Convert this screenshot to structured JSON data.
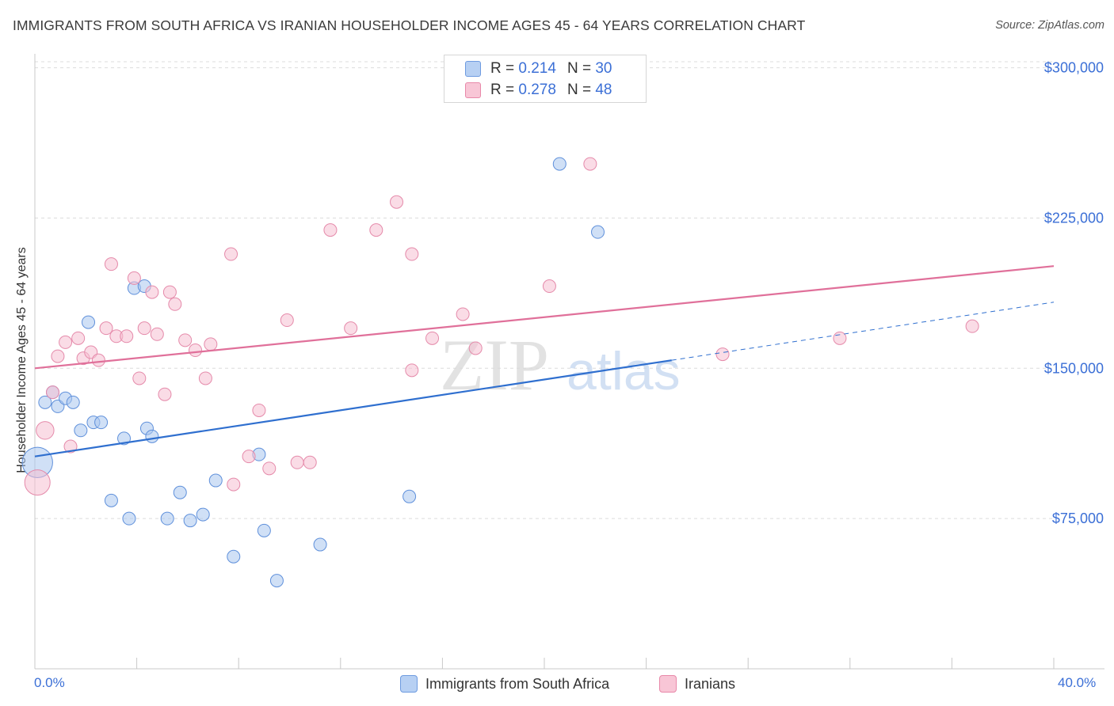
{
  "title": "IMMIGRANTS FROM SOUTH AFRICA VS IRANIAN HOUSEHOLDER INCOME AGES 45 - 64 YEARS CORRELATION CHART",
  "source": "Source: ZipAtlas.com",
  "watermark": {
    "zip": "ZIP",
    "atlas": "atlas"
  },
  "legend": {
    "r_label": "R =",
    "n_label": "N =",
    "entries": [
      {
        "r": "0.214",
        "n": "30",
        "fill": "#b7d0f3",
        "stroke": "#6e9be0"
      },
      {
        "r": "0.278",
        "n": "48",
        "fill": "#f8c6d6",
        "stroke": "#e888a9"
      }
    ]
  },
  "bottom_legend": [
    "Immigrants from South Africa",
    "Iranians"
  ],
  "colors": {
    "blue_fill": "#aac7ef",
    "blue_stroke": "#5f90db",
    "blue_line": "#2f6fcf",
    "pink_fill": "#f6bfd1",
    "pink_stroke": "#e58aaa",
    "pink_line": "#e0709a",
    "axis_text": "#3b6fd6",
    "grid": "#dcdcdc"
  },
  "chart_data": {
    "type": "scatter",
    "ylabel": "Householder Income Ages 45 - 64 years",
    "x_tick_labels": [
      "0.0%",
      "40.0%"
    ],
    "y_tick_labels": [
      "$75,000",
      "$150,000",
      "$225,000",
      "$300,000"
    ],
    "y_ticks": [
      75000,
      150000,
      225000,
      300000
    ],
    "xlim": [
      0,
      40
    ],
    "ylim": [
      0,
      303000
    ],
    "grid": true,
    "legend_position": "top-center",
    "series": [
      {
        "name": "Immigrants from South Africa",
        "color": "blue",
        "points": [
          [
            0.1,
            103000,
            2.4
          ],
          [
            0.4,
            133000,
            1
          ],
          [
            0.7,
            138000,
            1
          ],
          [
            0.9,
            131000,
            1
          ],
          [
            1.2,
            135000,
            1
          ],
          [
            1.5,
            133000,
            1
          ],
          [
            1.8,
            119000,
            1
          ],
          [
            2.1,
            173000,
            1
          ],
          [
            2.3,
            123000,
            1
          ],
          [
            2.6,
            123000,
            1
          ],
          [
            3.0,
            84000,
            1
          ],
          [
            3.5,
            115000,
            1
          ],
          [
            3.7,
            75000,
            1
          ],
          [
            3.9,
            190000,
            1
          ],
          [
            4.3,
            191000,
            1
          ],
          [
            4.4,
            120000,
            1
          ],
          [
            4.6,
            116000,
            1
          ],
          [
            5.2,
            75000,
            1
          ],
          [
            5.7,
            88000,
            1
          ],
          [
            6.1,
            74000,
            1
          ],
          [
            6.6,
            77000,
            1
          ],
          [
            7.1,
            94000,
            1
          ],
          [
            7.8,
            56000,
            1
          ],
          [
            8.8,
            107000,
            1
          ],
          [
            9.0,
            69000,
            1
          ],
          [
            9.5,
            44000,
            1
          ],
          [
            11.2,
            62000,
            1
          ],
          [
            14.7,
            86000,
            1
          ],
          [
            20.6,
            252000,
            1
          ],
          [
            22.1,
            218000,
            1
          ]
        ],
        "trend": {
          "x0": 0,
          "y0": 106000,
          "x1": 25.0,
          "y1": 154000
        },
        "trend_extension": {
          "x0": 25.0,
          "y0": 154000,
          "x1": 40,
          "y1": 183000
        }
      },
      {
        "name": "Iranians",
        "color": "pink",
        "points": [
          [
            0.1,
            93000,
            2.0
          ],
          [
            0.4,
            119000,
            1.4
          ],
          [
            0.7,
            138000,
            1
          ],
          [
            0.9,
            156000,
            1
          ],
          [
            1.2,
            163000,
            1
          ],
          [
            1.4,
            111000,
            1
          ],
          [
            1.7,
            165000,
            1
          ],
          [
            1.9,
            155000,
            1
          ],
          [
            2.2,
            158000,
            1
          ],
          [
            2.5,
            154000,
            1
          ],
          [
            2.8,
            170000,
            1
          ],
          [
            3.0,
            202000,
            1
          ],
          [
            3.2,
            166000,
            1
          ],
          [
            3.6,
            166000,
            1
          ],
          [
            3.9,
            195000,
            1
          ],
          [
            4.1,
            145000,
            1
          ],
          [
            4.3,
            170000,
            1
          ],
          [
            4.6,
            188000,
            1
          ],
          [
            4.8,
            167000,
            1
          ],
          [
            5.1,
            137000,
            1
          ],
          [
            5.3,
            188000,
            1
          ],
          [
            5.5,
            182000,
            1
          ],
          [
            5.9,
            164000,
            1
          ],
          [
            6.3,
            159000,
            1
          ],
          [
            6.7,
            145000,
            1
          ],
          [
            6.9,
            162000,
            1
          ],
          [
            7.7,
            207000,
            1
          ],
          [
            7.8,
            92000,
            1
          ],
          [
            8.4,
            106000,
            1
          ],
          [
            8.8,
            129000,
            1
          ],
          [
            9.2,
            100000,
            1
          ],
          [
            9.9,
            174000,
            1
          ],
          [
            10.3,
            103000,
            1
          ],
          [
            10.8,
            103000,
            1
          ],
          [
            11.6,
            219000,
            1
          ],
          [
            12.4,
            170000,
            1
          ],
          [
            13.4,
            219000,
            1
          ],
          [
            14.2,
            233000,
            1
          ],
          [
            14.8,
            149000,
            1
          ],
          [
            14.8,
            207000,
            1
          ],
          [
            15.6,
            165000,
            1
          ],
          [
            16.8,
            177000,
            1
          ],
          [
            17.3,
            160000,
            1
          ],
          [
            20.2,
            191000,
            1
          ],
          [
            21.8,
            252000,
            1
          ],
          [
            27.0,
            157000,
            1
          ],
          [
            31.6,
            165000,
            1
          ],
          [
            36.8,
            171000,
            1
          ]
        ],
        "trend": {
          "x0": 0,
          "y0": 150000,
          "x1": 40,
          "y1": 201000
        }
      }
    ]
  }
}
